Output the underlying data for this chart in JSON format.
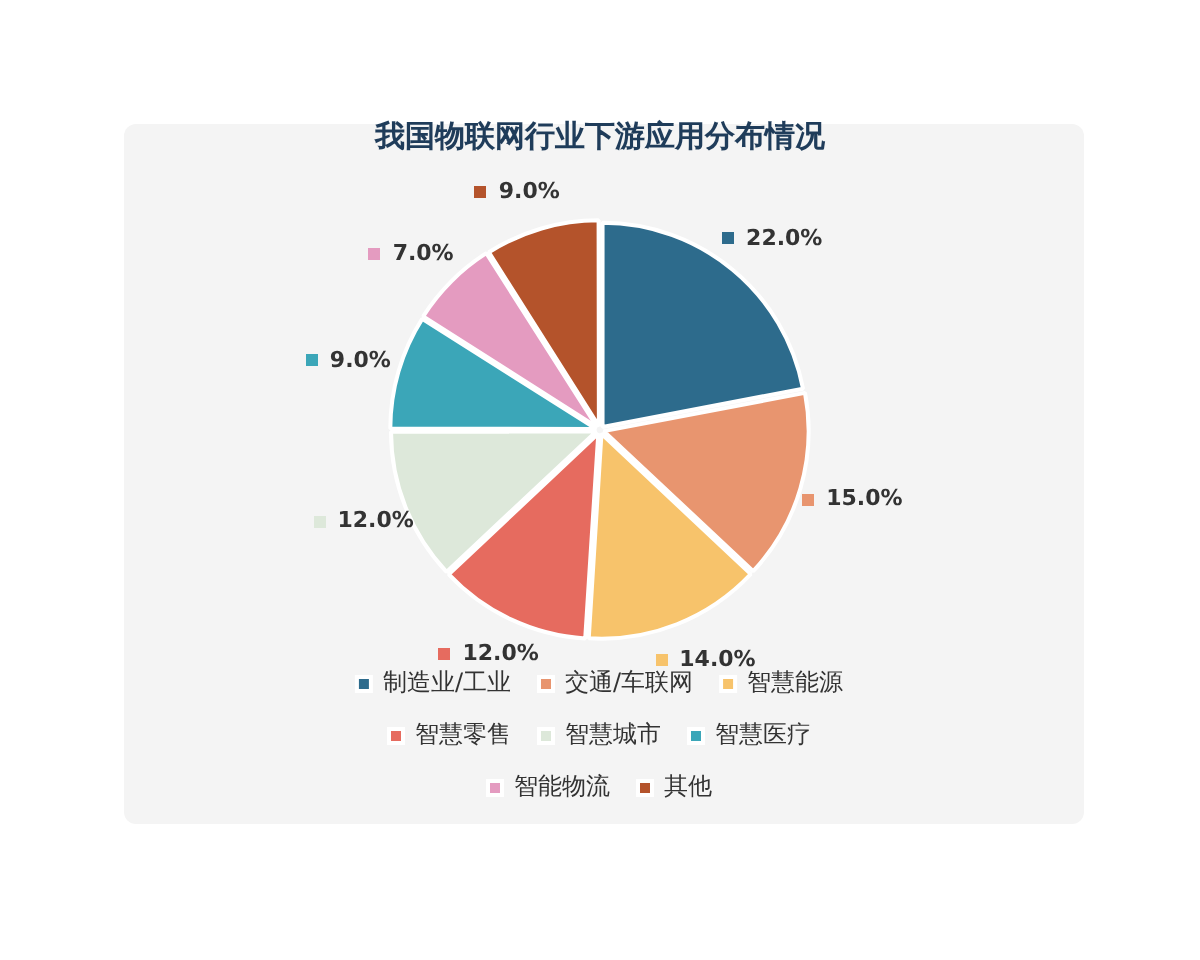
{
  "chart_data": {
    "type": "pie",
    "title": "我国物联网行业下游应用分布情况",
    "categories": [
      "制造业/工业",
      "交通/车联网",
      "智慧能源",
      "智慧零售",
      "智慧城市",
      "智慧医疗",
      "智能物流",
      "其他"
    ],
    "values": [
      22,
      15,
      14,
      12,
      12,
      9,
      7,
      9
    ],
    "colors": [
      "#2d6b8c",
      "#e8956f",
      "#f7c36b",
      "#e66b5f",
      "#dde8da",
      "#3ba6b8",
      "#e49bc0",
      "#b4532b"
    ],
    "value_labels": [
      "22.0%",
      "15.0%",
      "14.0%",
      "12.0%",
      "12.0%",
      "9.0%",
      "7.0%",
      "9.0%"
    ],
    "legend": "bottom"
  }
}
